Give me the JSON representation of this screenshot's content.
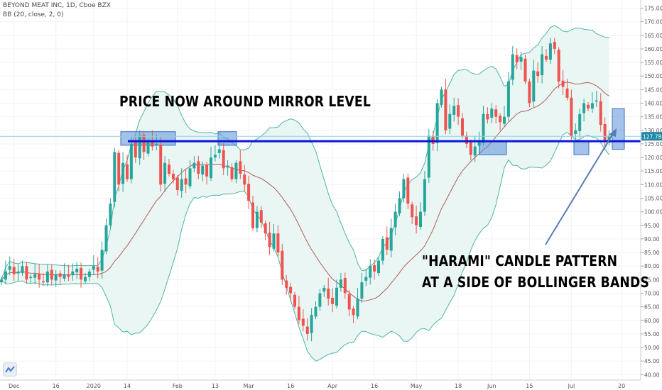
{
  "header": {
    "symbol_line": "BEYOND MEAT INC, 1D, Cboe BZX",
    "indicator_line": "BB (20, close, 2, 0)"
  },
  "annotations": {
    "top": "PRICE NOW AROUND MIRROR LEVEL",
    "bottom_line1": "\"HARAMI\" CANDLE PATTERN",
    "bottom_line2": "AT A SIDE OF BOLLINGER BANDS"
  },
  "price_badge": "127.78",
  "colors": {
    "up": "#26a69a",
    "down": "#ef5350",
    "band_fill": "#e9f6f3",
    "band_line": "#4fb5a5",
    "basis": "#b65b5b",
    "level": "#0b16d8",
    "box": "#5b8fd9",
    "arrow": "#5a7bb5"
  },
  "chart_data": {
    "type": "candlestick",
    "title": "BEYOND MEAT INC, 1D, Cboe BZX",
    "ylim": [
      38,
      178
    ],
    "y_ticks": [
      40,
      45,
      50,
      55,
      60,
      65,
      70,
      75,
      80,
      85,
      90,
      95,
      100,
      105,
      110,
      115,
      120,
      125,
      130,
      135,
      140,
      145,
      150,
      155,
      160,
      165,
      170,
      175
    ],
    "y_tick_labels": [
      "40.00",
      "45.00",
      "50.00",
      "55.00",
      "60.00",
      "65.00",
      "70.00",
      "75.00",
      "80.00",
      "85.00",
      "90.00",
      "95.00",
      "100.00",
      "105.00",
      "110.00",
      "115.00",
      "120.00",
      "125.00",
      "130.00",
      "135.00",
      "140.00",
      "145.00",
      "150.00",
      "155.00",
      "160.00",
      "165.00",
      "170.00",
      "175.00"
    ],
    "x_labels": [
      {
        "label": "Dec",
        "i": 3
      },
      {
        "label": "16",
        "i": 13
      },
      {
        "label": "2020",
        "i": 22
      },
      {
        "label": "14",
        "i": 30
      },
      {
        "label": "Feb",
        "i": 42
      },
      {
        "label": "13",
        "i": 51
      },
      {
        "label": "Mar",
        "i": 59
      },
      {
        "label": "16",
        "i": 69
      },
      {
        "label": "Apr",
        "i": 79
      },
      {
        "label": "16",
        "i": 89
      },
      {
        "label": "May",
        "i": 99
      },
      {
        "label": "18",
        "i": 109
      },
      {
        "label": "Jun",
        "i": 117
      },
      {
        "label": "15",
        "i": 126
      },
      {
        "label": "Jul",
        "i": 136
      },
      {
        "label": "20",
        "i": 148
      }
    ],
    "close": [
      75,
      78,
      80,
      77,
      78,
      80,
      75,
      76,
      77,
      75,
      74,
      78,
      75,
      77,
      76,
      77,
      76,
      78,
      79,
      75,
      76,
      78,
      80,
      78,
      86,
      95,
      103,
      122,
      110,
      118,
      112,
      125,
      120,
      128,
      122,
      126,
      124,
      125,
      110,
      118,
      114,
      112,
      108,
      112,
      110,
      116,
      118,
      114,
      117,
      113,
      120,
      121,
      123,
      116,
      117,
      112,
      118,
      114,
      110,
      104,
      94,
      100,
      96,
      92,
      87,
      92,
      85,
      75,
      72,
      70,
      65,
      60,
      58,
      55,
      62,
      65,
      70,
      72,
      68,
      66,
      72,
      75,
      70,
      64,
      62,
      68,
      74,
      76,
      80,
      78,
      82,
      90,
      86,
      94,
      100,
      105,
      112,
      103,
      98,
      95,
      100,
      112,
      128,
      125,
      140,
      145,
      130,
      136,
      139,
      135,
      128,
      125,
      121,
      124,
      126,
      136,
      134,
      138,
      135,
      133,
      135,
      148,
      158,
      155,
      157,
      148,
      140,
      152,
      150,
      158,
      156,
      162,
      160,
      148,
      146,
      142,
      128,
      130,
      136,
      140,
      138,
      140,
      141,
      132,
      126,
      128
    ]
  },
  "boxes": [
    {
      "x0": 170,
      "x1": 247,
      "y0": 129.5,
      "y1": 124.5
    },
    {
      "x0": 307,
      "x1": 333,
      "y0": 129.5,
      "y1": 124.5
    },
    {
      "x0": 675,
      "x1": 713,
      "y0": 126,
      "y1": 121
    },
    {
      "x0": 808,
      "x1": 829,
      "y0": 126,
      "y1": 121
    },
    {
      "x0": 862,
      "x1": 879,
      "y0": 138,
      "y1": 123
    }
  ],
  "level": 126
}
